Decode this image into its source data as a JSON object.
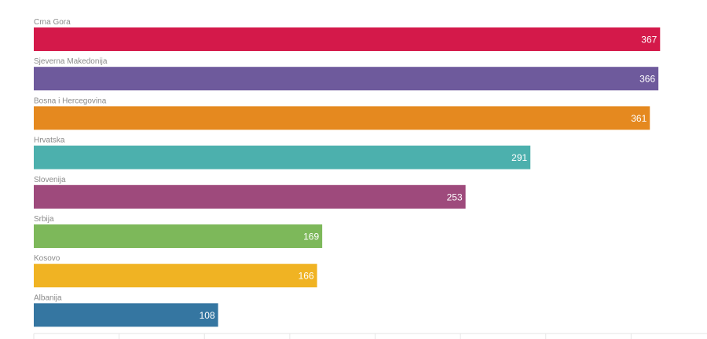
{
  "chart_data": {
    "type": "bar",
    "orientation": "horizontal",
    "categories": [
      "Crna Gora",
      "Sjeverna Makedonija",
      "Bosna i Hercegovina",
      "Hrvatska",
      "Slovenija",
      "Srbija",
      "Kosovo",
      "Albanija"
    ],
    "values": [
      367,
      366,
      361,
      291,
      253,
      169,
      166,
      108
    ],
    "colors": [
      "#d4194a",
      "#6e5a9c",
      "#e5891f",
      "#4cb0ad",
      "#9e4a7c",
      "#7db85a",
      "#f0b323",
      "#3576a1"
    ],
    "title": "",
    "xlabel": "",
    "ylabel": "",
    "xlim": [
      0,
      400
    ],
    "grid": false,
    "legend": "none",
    "value_labels": "inside-end"
  }
}
